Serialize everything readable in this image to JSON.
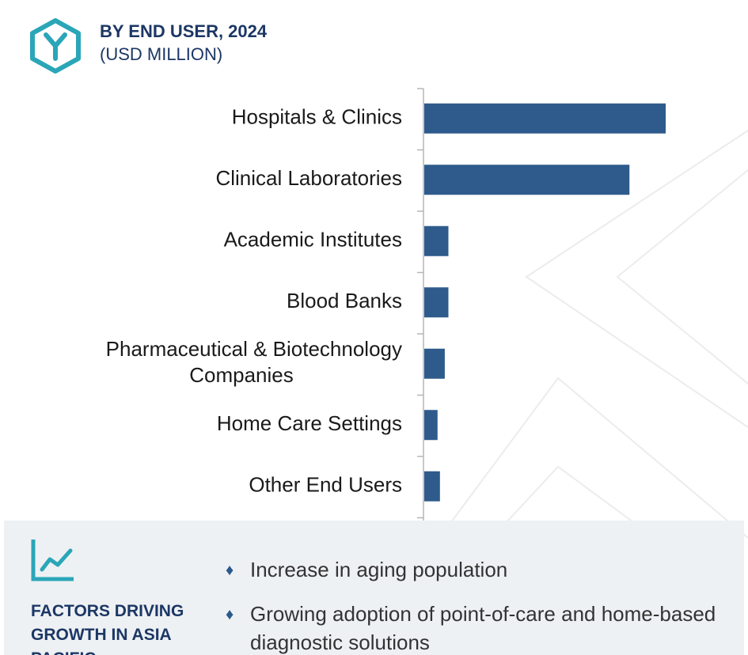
{
  "header": {
    "title": "BY END USER, 2024",
    "subtitle": "(USD MILLION)"
  },
  "icons": {
    "logo": "hexagon-y-logo-icon",
    "trend": "trend-line-chart-icon",
    "bullet": "diamond-bullet-icon"
  },
  "colors": {
    "bar": "#2e5b8c",
    "title": "#1c3765",
    "accent": "#2aa6b8",
    "panel": "#eef1f4"
  },
  "chart_data": {
    "type": "bar",
    "orientation": "horizontal",
    "categories": [
      "Hospitals & Clinics",
      "Clinical Laboratories",
      "Academic Institutes",
      "Blood Banks",
      "Pharmaceutical & Biotechnology Companies",
      "Home Care Settings",
      "Other End Users"
    ],
    "category_lines": [
      [
        "Hospitals & Clinics"
      ],
      [
        "Clinical Laboratories"
      ],
      [
        "Academic Institutes"
      ],
      [
        "Blood Banks"
      ],
      [
        "Pharmaceutical & Biotechnology",
        "Companies"
      ],
      [
        "Home Care Settings"
      ],
      [
        "Other End Users"
      ]
    ],
    "values": [
      100,
      85,
      10,
      10,
      8.5,
      5.5,
      6.5
    ],
    "xlim": [
      0,
      100
    ],
    "title": "BY END USER, 2024",
    "xlabel": "",
    "ylabel": "",
    "grid": false,
    "value_labels": false
  },
  "factors": {
    "title": "FACTORS DRIVING GROWTH IN ASIA PACIFIC",
    "bullets": [
      "Increase in aging population",
      "Growing adoption of point-of-care and home-based diagnostic solutions"
    ]
  }
}
